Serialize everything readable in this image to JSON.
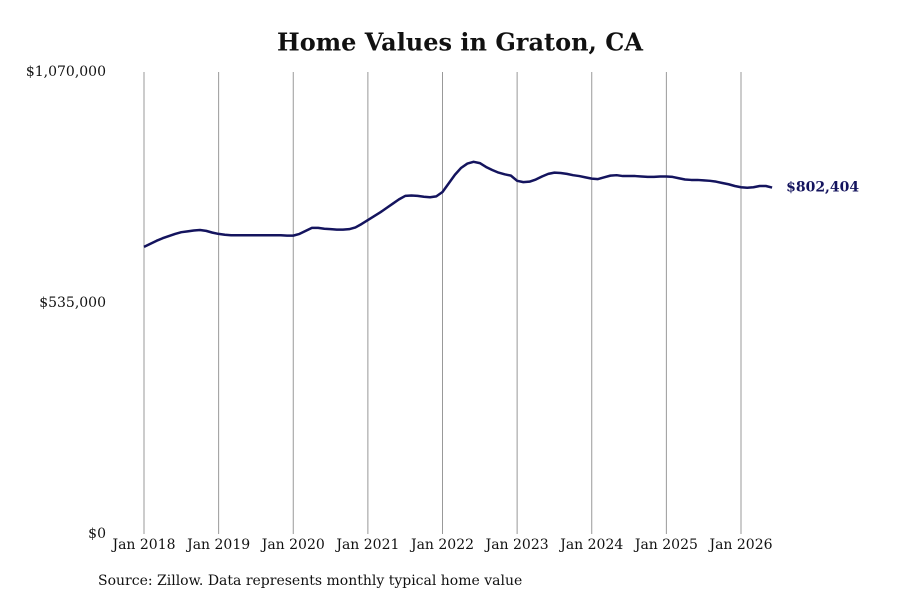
{
  "chart_data": {
    "type": "line",
    "title": "Home Values in Graton, CA",
    "source": "Source: Zillow. Data represents monthly typical home value",
    "x": [
      "2018-01",
      "2018-02",
      "2018-03",
      "2018-04",
      "2018-05",
      "2018-06",
      "2018-07",
      "2018-08",
      "2018-09",
      "2018-10",
      "2018-11",
      "2018-12",
      "2019-01",
      "2019-02",
      "2019-03",
      "2019-04",
      "2019-05",
      "2019-06",
      "2019-07",
      "2019-08",
      "2019-09",
      "2019-10",
      "2019-11",
      "2019-12",
      "2020-01",
      "2020-02",
      "2020-03",
      "2020-04",
      "2020-05",
      "2020-06",
      "2020-07",
      "2020-08",
      "2020-09",
      "2020-10",
      "2020-11",
      "2020-12",
      "2021-01",
      "2021-02",
      "2021-03",
      "2021-04",
      "2021-05",
      "2021-06",
      "2021-07",
      "2021-08",
      "2021-09",
      "2021-10",
      "2021-11",
      "2021-12",
      "2022-01",
      "2022-02",
      "2022-03",
      "2022-04",
      "2022-05",
      "2022-06",
      "2022-07",
      "2022-08",
      "2022-09",
      "2022-10",
      "2022-11",
      "2022-12",
      "2023-01",
      "2023-02",
      "2023-03",
      "2023-04",
      "2023-05",
      "2023-06",
      "2023-07",
      "2023-08",
      "2023-09",
      "2023-10",
      "2023-11",
      "2023-12",
      "2024-01",
      "2024-02",
      "2024-03",
      "2024-04",
      "2024-05",
      "2024-06",
      "2024-07",
      "2024-08",
      "2024-09",
      "2024-10",
      "2024-11",
      "2024-12",
      "2025-01",
      "2025-02",
      "2025-03",
      "2025-04",
      "2025-05",
      "2025-06",
      "2025-07",
      "2025-08",
      "2025-09",
      "2025-10",
      "2025-11",
      "2025-12",
      "2026-01",
      "2026-02",
      "2026-03",
      "2026-04",
      "2026-05",
      "2026-06"
    ],
    "series": [
      {
        "name": "Typical home value",
        "color": "#14145e",
        "values": [
          665000,
          672000,
          679000,
          685000,
          690000,
          695000,
          699000,
          701000,
          703000,
          704000,
          702000,
          698000,
          695000,
          693000,
          692000,
          692000,
          692000,
          692000,
          692000,
          692000,
          692000,
          692000,
          692000,
          691000,
          691000,
          695000,
          702000,
          709000,
          709000,
          707000,
          706000,
          705000,
          705000,
          706000,
          710000,
          718000,
          727000,
          736000,
          745000,
          755000,
          765000,
          775000,
          783000,
          784000,
          783000,
          781000,
          780000,
          782000,
          792000,
          812000,
          832000,
          848000,
          858000,
          862000,
          859000,
          850000,
          843000,
          837000,
          833000,
          830000,
          818000,
          815000,
          816000,
          821000,
          828000,
          834000,
          837000,
          836000,
          834000,
          831000,
          829000,
          826000,
          823000,
          822000,
          826000,
          830000,
          831000,
          829000,
          829000,
          829000,
          828000,
          827000,
          827000,
          828000,
          828000,
          827000,
          824000,
          821000,
          820000,
          820000,
          819000,
          818000,
          816000,
          813000,
          810000,
          806000,
          803000,
          802000,
          803000,
          806000,
          806000,
          802404
        ]
      }
    ],
    "end_label": "$802,404",
    "ylim": [
      0,
      1070000
    ],
    "yticks": [
      {
        "value": 0,
        "label": "$0"
      },
      {
        "value": 535000,
        "label": "$535,000"
      },
      {
        "value": 1070000,
        "label": "$1,070,000"
      }
    ],
    "xticks": [
      {
        "value": "2018-01",
        "label": "Jan 2018"
      },
      {
        "value": "2019-01",
        "label": "Jan 2019"
      },
      {
        "value": "2020-01",
        "label": "Jan 2020"
      },
      {
        "value": "2021-01",
        "label": "Jan 2021"
      },
      {
        "value": "2022-01",
        "label": "Jan 2022"
      },
      {
        "value": "2023-01",
        "label": "Jan 2023"
      },
      {
        "value": "2024-01",
        "label": "Jan 2024"
      },
      {
        "value": "2025-01",
        "label": "Jan 2025"
      },
      {
        "value": "2026-01",
        "label": "Jan 2026"
      }
    ],
    "grid": "x"
  }
}
